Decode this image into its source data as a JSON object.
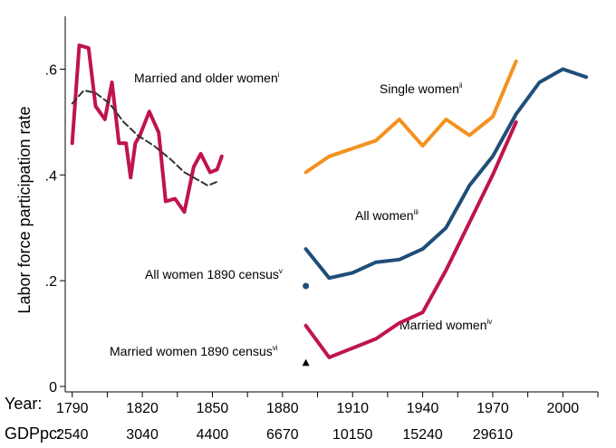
{
  "chart_data": {
    "type": "line",
    "ylabel": "Labor force participation rate",
    "ylim": [
      0,
      0.7
    ],
    "xlim": [
      1787,
      2015
    ],
    "y_ticks": [
      {
        "value": 0,
        "label": "0"
      },
      {
        "value": 0.2,
        "label": ".2"
      },
      {
        "value": 0.4,
        "label": ".4"
      },
      {
        "value": 0.6,
        "label": ".6"
      }
    ],
    "x_row_label": "Year:",
    "gdp_row_label": "GDPpc:",
    "x_ticks": [
      {
        "year": 1790,
        "label": "1790",
        "gdp": "2540"
      },
      {
        "year": 1820,
        "label": "1820",
        "gdp": "3040"
      },
      {
        "year": 1850,
        "label": "1850",
        "gdp": "4400"
      },
      {
        "year": 1880,
        "label": "1880",
        "gdp": "6670"
      },
      {
        "year": 1910,
        "label": "1910",
        "gdp": "10150"
      },
      {
        "year": 1940,
        "label": "1940",
        "gdp": "15240"
      },
      {
        "year": 1970,
        "label": "1970",
        "gdp": "29610"
      },
      {
        "year": 2000,
        "label": "2000",
        "gdp": ""
      }
    ],
    "minor_x_ticks": [
      1805,
      1835,
      1865,
      1895,
      1925,
      1955,
      1985,
      2015
    ],
    "grid": false,
    "colors": {
      "married_older": "#c0144c",
      "trend": "#333333",
      "single": "#f39220",
      "all_women": "#1f4e79",
      "married": "#c0144c"
    },
    "series": [
      {
        "name": "Married and older women",
        "sup": "i",
        "color": "#c0144c",
        "x": [
          1790,
          1793,
          1797,
          1800,
          1804,
          1807,
          1810,
          1813,
          1815,
          1817,
          1819,
          1823,
          1827,
          1830,
          1834,
          1838,
          1842,
          1845,
          1849,
          1852,
          1854
        ],
        "y": [
          0.46,
          0.645,
          0.64,
          0.53,
          0.505,
          0.575,
          0.46,
          0.46,
          0.395,
          0.46,
          0.475,
          0.52,
          0.48,
          0.35,
          0.355,
          0.33,
          0.415,
          0.44,
          0.405,
          0.41,
          0.435
        ]
      },
      {
        "name": "",
        "color": "#333333",
        "dashed": true,
        "x": [
          1790,
          1795,
          1800,
          1806,
          1812,
          1818,
          1825,
          1832,
          1838,
          1844,
          1848,
          1852
        ],
        "y": [
          0.535,
          0.56,
          0.555,
          0.535,
          0.5,
          0.475,
          0.455,
          0.43,
          0.405,
          0.39,
          0.38,
          0.387
        ]
      },
      {
        "name": "Single women",
        "sup": "ii",
        "color": "#f39220",
        "x": [
          1890,
          1900,
          1920,
          1930,
          1940,
          1950,
          1960,
          1970,
          1980
        ],
        "y": [
          0.405,
          0.435,
          0.465,
          0.505,
          0.455,
          0.505,
          0.475,
          0.51,
          0.615
        ]
      },
      {
        "name": "All women",
        "sup": "iii",
        "color": "#1f4e79",
        "x": [
          1890,
          1900,
          1910,
          1920,
          1930,
          1940,
          1950,
          1960,
          1970,
          1980,
          1990,
          2000,
          2010
        ],
        "y": [
          0.26,
          0.205,
          0.215,
          0.235,
          0.24,
          0.26,
          0.3,
          0.38,
          0.435,
          0.515,
          0.575,
          0.6,
          0.585
        ]
      },
      {
        "name": "Married women",
        "sup": "iv",
        "color": "#c0144c",
        "x": [
          1890,
          1900,
          1920,
          1930,
          1940,
          1950,
          1960,
          1970,
          1980
        ],
        "y": [
          0.115,
          0.055,
          0.09,
          0.12,
          0.14,
          0.22,
          0.31,
          0.4,
          0.5
        ]
      }
    ],
    "points": [
      {
        "name": "All women 1890 census",
        "sup": "v",
        "x": 1890,
        "y": 0.19,
        "marker": "circle",
        "color": "#1f4e79"
      },
      {
        "name": "Married women 1890 census",
        "sup": "vi",
        "x": 1890,
        "y": 0.045,
        "marker": "triangle",
        "color": "#000000"
      }
    ]
  }
}
